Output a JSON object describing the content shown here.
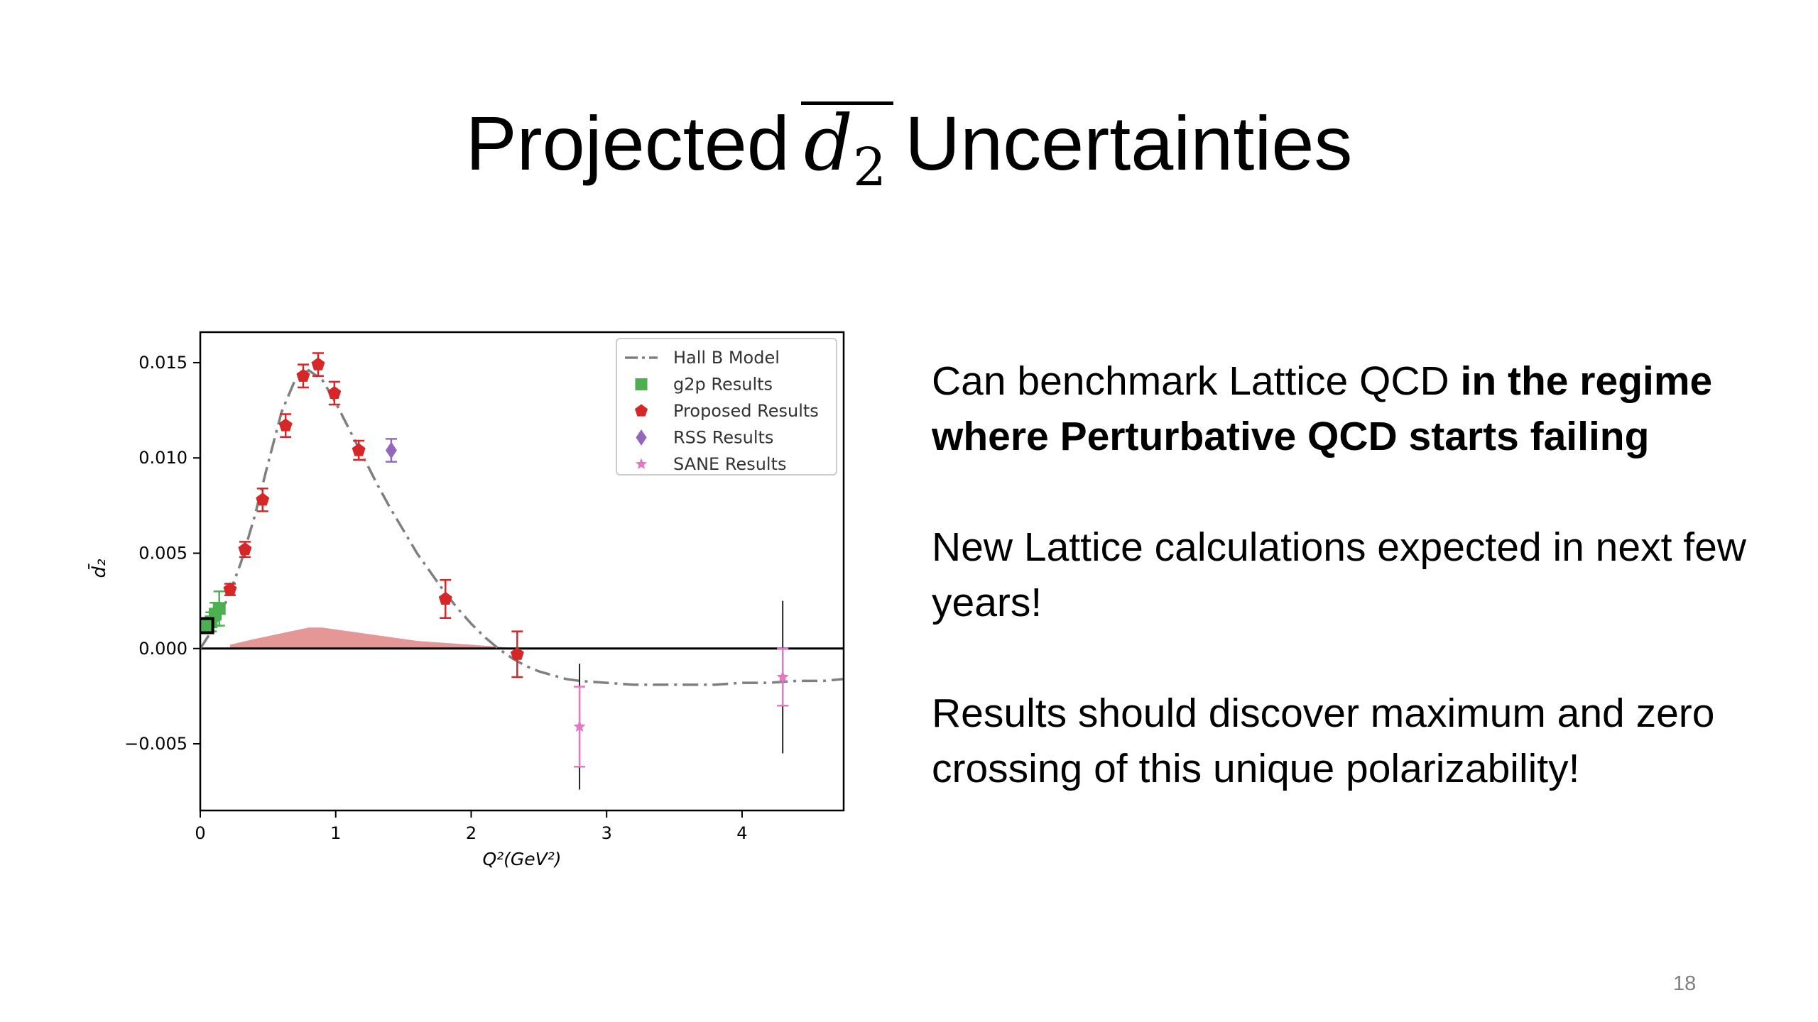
{
  "slide": {
    "title_before": "Projected",
    "title_symbol": "d",
    "title_subscript": "2",
    "title_after": "Uncertainties",
    "page_number": "18",
    "bullets": [
      {
        "plain": "Can benchmark Lattice QCD ",
        "bold": "in the regime where Perturbative QCD starts failing"
      },
      {
        "plain": "New Lattice calculations expected in next few years!",
        "bold": ""
      },
      {
        "plain": "Results should discover maximum and zero crossing of this unique polarizability!",
        "bold": ""
      }
    ]
  },
  "chart_data": {
    "type": "scatter",
    "xlabel": "Q²(GeV²)",
    "ylabel": "d̄₂",
    "xlim": [
      0,
      4.75
    ],
    "ylim": [
      -0.0085,
      0.0166
    ],
    "xticks": [
      0,
      1,
      2,
      3,
      4
    ],
    "yticks": [
      -0.005,
      0.0,
      0.005,
      0.01,
      0.015
    ],
    "ytick_labels": [
      "−0.005",
      "0.000",
      "0.005",
      "0.010",
      "0.015"
    ],
    "grid": false,
    "legend_position": "top-right",
    "zero_line": true,
    "colors": {
      "model": "#7f7f7f",
      "g2p": "#4caf50",
      "proposed": "#d62728",
      "band": "#e28b8b",
      "rss": "#9467bd",
      "sane": "#e377c2"
    },
    "model_curve": {
      "name": "Hall B Model",
      "x": [
        0,
        0.1,
        0.2,
        0.3,
        0.4,
        0.5,
        0.6,
        0.7,
        0.8,
        0.9,
        1.0,
        1.1,
        1.2,
        1.3,
        1.4,
        1.5,
        1.6,
        1.7,
        1.8,
        1.9,
        2.0,
        2.1,
        2.2,
        2.3,
        2.4,
        2.5,
        2.6,
        2.7,
        2.8,
        3.0,
        3.2,
        3.4,
        3.6,
        3.8,
        4.0,
        4.2,
        4.4,
        4.6,
        4.75
      ],
      "y": [
        0.0,
        0.0011,
        0.0026,
        0.0045,
        0.0069,
        0.0097,
        0.0124,
        0.0141,
        0.0146,
        0.0141,
        0.0129,
        0.0115,
        0.0101,
        0.0087,
        0.0074,
        0.0062,
        0.005,
        0.004,
        0.003,
        0.0021,
        0.0013,
        0.0006,
        0.0,
        -0.0005,
        -0.0009,
        -0.0012,
        -0.0014,
        -0.0016,
        -0.0017,
        -0.0018,
        -0.0019,
        -0.0019,
        -0.0019,
        -0.0019,
        -0.0018,
        -0.0018,
        -0.0017,
        -0.0017,
        -0.0016
      ]
    },
    "uncertainty_band": {
      "x": [
        0.22,
        0.4,
        0.6,
        0.8,
        0.9,
        1.0,
        1.2,
        1.4,
        1.6,
        1.8,
        2.0,
        2.2,
        2.32
      ],
      "upper": [
        0.0002,
        0.0005,
        0.0008,
        0.0011,
        0.0011,
        0.001,
        0.0008,
        0.0006,
        0.0004,
        0.0003,
        0.0002,
        0.0001,
        0.0
      ]
    },
    "series": [
      {
        "name": "g2p Results",
        "marker": "square",
        "points": [
          {
            "x": 0.04,
            "y": 0.0012,
            "err": 0.0003
          },
          {
            "x": 0.08,
            "y": 0.0014,
            "err": 0.0005
          },
          {
            "x": 0.11,
            "y": 0.0018,
            "err": 0.0006
          },
          {
            "x": 0.14,
            "y": 0.0021,
            "err": 0.0009
          }
        ]
      },
      {
        "name": "Proposed Results",
        "marker": "pentagon",
        "points": [
          {
            "x": 0.22,
            "y": 0.0031,
            "err": 0.0003
          },
          {
            "x": 0.33,
            "y": 0.0052,
            "err": 0.0004
          },
          {
            "x": 0.46,
            "y": 0.0078,
            "err": 0.0006
          },
          {
            "x": 0.63,
            "y": 0.0117,
            "err": 0.0006
          },
          {
            "x": 0.76,
            "y": 0.0143,
            "err": 0.0006
          },
          {
            "x": 0.87,
            "y": 0.0149,
            "err": 0.0006
          },
          {
            "x": 0.99,
            "y": 0.0134,
            "err": 0.0006
          },
          {
            "x": 1.17,
            "y": 0.0104,
            "err": 0.0005
          },
          {
            "x": 1.81,
            "y": 0.0026,
            "err": 0.001
          },
          {
            "x": 2.34,
            "y": -0.0003,
            "err": 0.0012
          }
        ]
      },
      {
        "name": "RSS Results",
        "marker": "diamond",
        "points": [
          {
            "x": 1.41,
            "y": 0.0104,
            "err": 0.0006
          }
        ]
      },
      {
        "name": "SANE Results",
        "marker": "star",
        "points": [
          {
            "x": 2.8,
            "y": -0.0041,
            "err": 0.0021,
            "outer_err": 0.0033
          },
          {
            "x": 4.3,
            "y": -0.0015,
            "err": 0.0015,
            "outer_err": 0.004
          }
        ]
      }
    ]
  }
}
